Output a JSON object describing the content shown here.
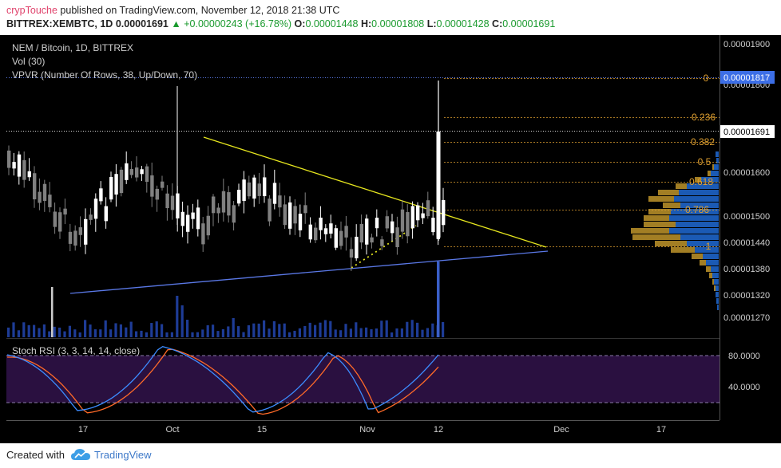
{
  "header": {
    "publisher": "crypTouche",
    "published_text": "published on TradingView.com, November 12, 2018 21:38 UTC",
    "symbol": "BITTREX:XEMBTC, 1D",
    "last": "0.00001691",
    "change": "+0.00000243 (+16.78%)",
    "o_label": "O:",
    "o_value": "0.00001448",
    "h_label": "H:",
    "h_value": "0.00001808",
    "l_label": "L:",
    "l_value": "0.00001428",
    "c_label": "C:",
    "c_value": "0.00001691"
  },
  "legend": {
    "title": "NEM / Bitcoin, 1D, BITTREX",
    "vol": "Vol (30)",
    "vpvr": "VPVR (Number Of Rows, 38, Up/Down, 70)",
    "stoch": "Stoch RSI (3, 3, 14, 14, close)"
  },
  "price_axis": {
    "ticks": [
      "0.00001900",
      "0.00001800",
      "0.00001600",
      "0.00001500",
      "0.00001440",
      "0.00001380",
      "0.00001320",
      "0.00001270"
    ],
    "high_marker": "0.00001817",
    "last_marker": "0.00001691"
  },
  "stoch_axis": {
    "ticks": [
      "80.0000",
      "40.0000"
    ]
  },
  "time_axis": {
    "ticks": [
      "17",
      "Oct",
      "15",
      "Nov",
      "12",
      "Dec",
      "17"
    ]
  },
  "fib_levels": [
    "0",
    "0.236",
    "0.382",
    "0.5",
    "0.618",
    "0.786",
    "1"
  ],
  "footer": {
    "created": "Created with",
    "brand": "TradingView"
  },
  "colors": {
    "background": "#000000",
    "bull_candle": "#ffffff",
    "bear_candle": "#808080",
    "fib": "#e0a030",
    "trend_upper": "#e6e61e",
    "trend_lower": "#5a78e6",
    "volume": "#1e3c96",
    "stoch_k": "#3c8cff",
    "stoch_d": "#ff6a28",
    "stoch_band": "#2a1040",
    "vp_up": "#1e64c8",
    "vp_down": "#b48c28"
  },
  "chart_data": {
    "type": "candlestick",
    "symbol": "BITTREX:XEMBTC",
    "interval": "1D",
    "last_candle": {
      "date": "2018-11-12",
      "open": 1.448e-05,
      "high": 1.808e-05,
      "low": 1.428e-05,
      "close": 1.691e-05
    },
    "price_range": [
      1.25e-05,
      1.95e-05
    ],
    "fibonacci": [
      {
        "level": "0",
        "price": 1.808e-05
      },
      {
        "level": "0.236",
        "price": 1.72e-05
      },
      {
        "level": "0.382",
        "price": 1.67e-05
      },
      {
        "level": "0.5",
        "price": 1.63e-05
      },
      {
        "level": "0.618",
        "price": 1.58e-05
      },
      {
        "level": "0.786",
        "price": 1.52e-05
      },
      {
        "level": "1",
        "price": 1.428e-05
      }
    ],
    "stoch_rsi": {
      "k": 75,
      "d": 68,
      "bands": [
        80,
        20
      ]
    }
  }
}
